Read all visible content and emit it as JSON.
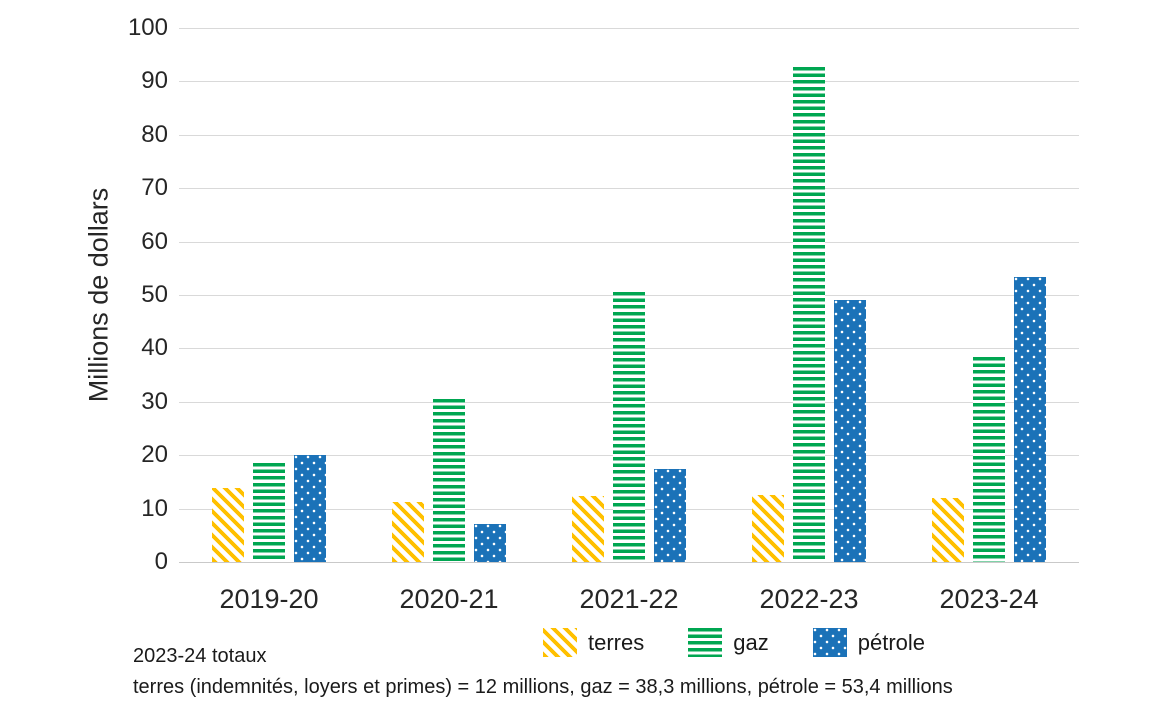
{
  "chart_data": {
    "type": "bar",
    "categories": [
      "2019-20",
      "2020-21",
      "2021-22",
      "2022-23",
      "2023-24"
    ],
    "series": [
      {
        "name": "terres",
        "pattern": "diagonal",
        "color": "#FFC000",
        "values": [
          13.9,
          11.3,
          12.4,
          12.6,
          12.0
        ]
      },
      {
        "name": "gaz",
        "pattern": "horizontal",
        "color": "#00A651",
        "values": [
          18.6,
          30.5,
          50.5,
          92.7,
          38.3
        ]
      },
      {
        "name": "pétrole",
        "pattern": "dots",
        "color": "#1B72B8",
        "values": [
          20.0,
          7.1,
          17.4,
          49.0,
          53.4
        ]
      }
    ],
    "title": "",
    "xlabel": "",
    "ylabel": "Millions de dollars",
    "ylim": [
      0,
      100
    ],
    "yticks": [
      0,
      10,
      20,
      30,
      40,
      50,
      60,
      70,
      80,
      90,
      100
    ],
    "grid": true,
    "legend_position": "bottom"
  },
  "legend": {
    "items": [
      {
        "label": "terres"
      },
      {
        "label": "gaz"
      },
      {
        "label": "pétrole"
      }
    ]
  },
  "footnote": {
    "line1": "2023-24 totaux",
    "line2": "terres (indemnités, loyers et primes) = 12 millions, gaz = 38,3 millions, pétrole = 53,4 millions"
  },
  "colors": {
    "terres": "#FFC000",
    "gaz": "#00A651",
    "petrole": "#1B72B8",
    "grid": "#D9D9D9",
    "baseline": "#C9C9C9",
    "text": "#262626"
  }
}
